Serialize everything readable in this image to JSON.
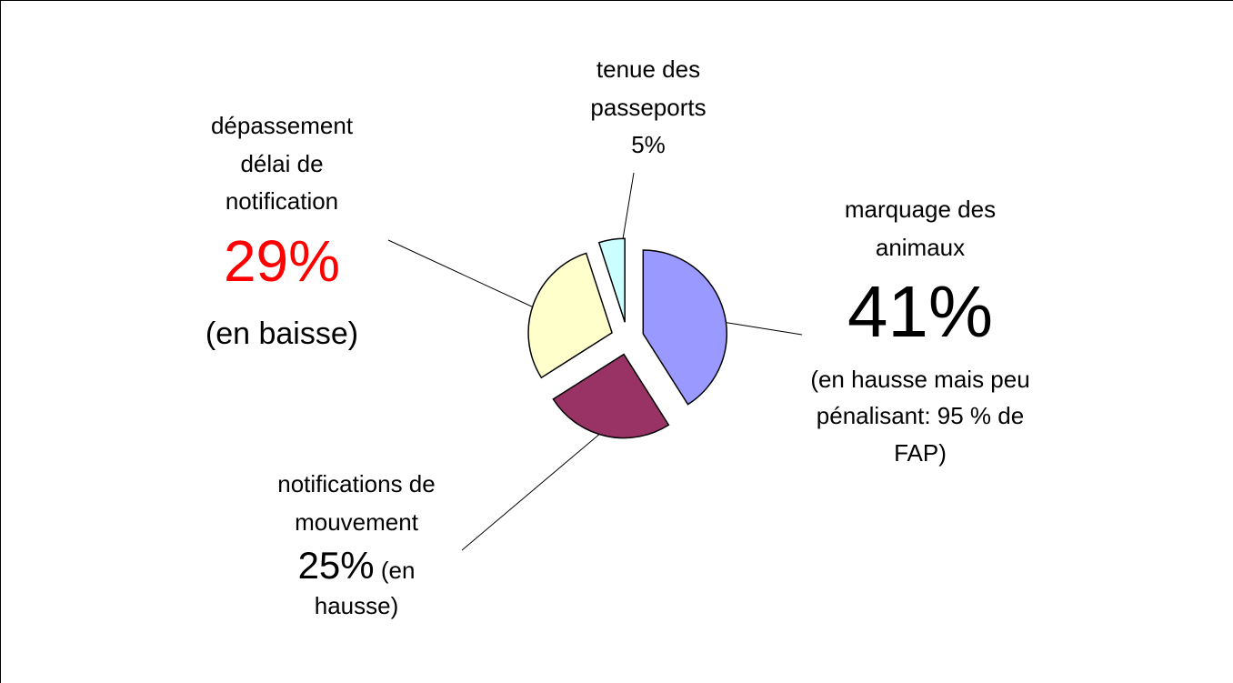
{
  "chart_data": {
    "type": "pie",
    "categories": [
      "marquage des animaux",
      "notifications de mouvement",
      "dépassement délai de notification",
      "tenue des passeports"
    ],
    "values": [
      41,
      25,
      29,
      5
    ],
    "value_labels": [
      "41%",
      "25%",
      "29%",
      "5%"
    ],
    "annotations": [
      "(en hausse mais peu pénalisant: 95 % de FAP)",
      "(en hausse)",
      "(en baisse)",
      null
    ],
    "colors": [
      "#9999ff",
      "#993366",
      "#ffffcc",
      "#ccffff"
    ],
    "value_label_colors": [
      "#000000",
      "#000000",
      "#ff0000",
      "#000000"
    ],
    "exploded": true
  }
}
